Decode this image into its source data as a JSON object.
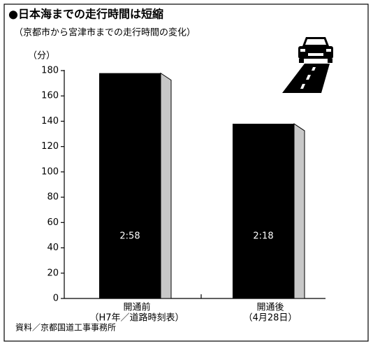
{
  "chart_data": {
    "type": "bar",
    "title": "●日本海までの走行時間は短縮",
    "subtitle": "（京都市から宮津市までの走行時間の変化）",
    "y_label": "（分）",
    "categories": [
      "開通前",
      "開通後"
    ],
    "category_notes": [
      "（H7年／道路時刻表）",
      "（4月28日）"
    ],
    "values": [
      178,
      138
    ],
    "value_labels": [
      "2:58",
      "2:18"
    ],
    "color": "#000000",
    "side_color": "#c8c8c8",
    "ylim": [
      0,
      180
    ],
    "yticks": [
      0,
      20,
      40,
      60,
      80,
      100,
      120,
      140,
      160,
      180
    ],
    "source": "資料／京都国道工事事務所"
  }
}
